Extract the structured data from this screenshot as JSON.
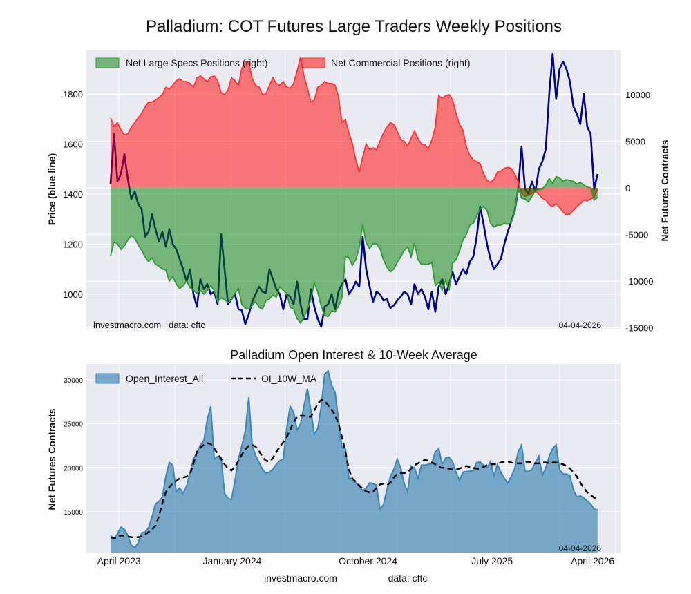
{
  "colors": {
    "plot_bg": "#eaeaf2",
    "grid": "#ffffff",
    "price_line": "#00008b",
    "specs_fill": "#008000",
    "specs_line": "#2f9a2f",
    "comm_fill": "#ff0000",
    "comm_line": "#ff3333",
    "oi_fill": "#2878ac",
    "oi_line": "#3a86b4",
    "ma_line": "#000000"
  },
  "footer": {
    "site": "investmacro.com",
    "data": "data: cftc"
  },
  "chart_data": [
    {
      "type": "area",
      "title": "Palladium: COT Futures Large Traders Weekly Positions",
      "ylabel_left": "Price (blue line)",
      "ylabel_right": "Net Futures Contracts",
      "watermark": "investmacro.com   data: cftc",
      "date_label": "04-04-2026",
      "xlim_weeks": [
        -7.8,
        164.4
      ],
      "ylim_left": [
        859,
        1977
      ],
      "ylim_right": [
        -15185,
        14815
      ],
      "left_ticks": [
        1000,
        1200,
        1400,
        1600,
        1800
      ],
      "right_ticks": [
        -15000,
        -10000,
        -5000,
        0,
        5000,
        10000
      ],
      "x_gridlines_weeks": [
        2.7,
        20.7,
        38.8,
        56.3,
        74.2,
        92.2,
        109.6,
        127.4,
        144.8,
        162.8
      ],
      "grid": true,
      "legend_placement": "top-left",
      "week_start": 0,
      "week_step": 1.1135,
      "series": [
        {
          "name": "Price",
          "axis": "left",
          "kind": "line",
          "values": [
            1440,
            1640,
            1450,
            1480,
            1560,
            1460,
            1380,
            1410,
            1360,
            1340,
            1230,
            1250,
            1320,
            1260,
            1210,
            1250,
            1190,
            1260,
            1200,
            1180,
            1140,
            1100,
            1050,
            1100,
            1000,
            950,
            1060,
            1020,
            1040,
            1000,
            1010,
            960,
            1240,
            1100,
            960,
            980,
            1000,
            940,
            935,
            880,
            920,
            970,
            1000,
            1030,
            1010,
            1005,
            1100,
            1060,
            1020,
            1000,
            940,
            1000,
            990,
            960,
            1050,
            960,
            900,
            900,
            1020,
            950,
            900,
            870,
            950,
            960,
            1000,
            940,
            1010,
            1040,
            1060,
            1000,
            1020,
            1050,
            1030,
            1230,
            1100,
            1030,
            970,
            1010,
            1000,
            975,
            980,
            945,
            955,
            975,
            990,
            1010,
            1000,
            960,
            1040,
            1000,
            1020,
            990,
            940,
            1010,
            930,
            1030,
            1060,
            1000,
            1040,
            1090,
            1040,
            1070,
            1100,
            1080,
            1130,
            1150,
            1230,
            1350,
            1280,
            1200,
            1140,
            1100,
            1120,
            1140,
            1200,
            1250,
            1290,
            1330,
            1420,
            1590,
            1420,
            1400,
            1450,
            1410,
            1500,
            1530,
            1580,
            1800,
            1960,
            1780,
            1900,
            1930,
            1900,
            1850,
            1750,
            1720,
            1680,
            1800,
            1670,
            1640,
            1420,
            1480
          ]
        },
        {
          "name": "Net Commercial Positions (right)",
          "axis": "right",
          "kind": "fill",
          "values": [
            7500,
            6600,
            7000,
            6200,
            5700,
            5800,
            6500,
            7000,
            7500,
            8000,
            8700,
            9200,
            9200,
            9400,
            9700,
            10000,
            10800,
            10600,
            11000,
            11500,
            11700,
            11400,
            11400,
            11200,
            10800,
            11800,
            12000,
            11700,
            11400,
            11900,
            12000,
            11500,
            10200,
            10000,
            10500,
            11800,
            11500,
            11000,
            12800,
            13500,
            13400,
            11700,
            11000,
            10800,
            10000,
            10100,
            11000,
            11800,
            11200,
            11000,
            11400,
            10800,
            10700,
            11200,
            12500,
            14000,
            12000,
            10700,
            9200,
            9400,
            10800,
            11000,
            11400,
            11200,
            11200,
            11000,
            9800,
            7000,
            7300,
            5900,
            4800,
            3000,
            1700,
            3300,
            4700,
            4100,
            4300,
            4100,
            5000,
            5900,
            6500,
            7000,
            6800,
            6100,
            5200,
            5000,
            4500,
            5300,
            6100,
            5300,
            4700,
            4600,
            4200,
            5100,
            6500,
            9900,
            9600,
            9900,
            10000,
            9500,
            8000,
            6800,
            6200,
            4400,
            3500,
            3000,
            2800,
            2600,
            1500,
            800,
            600,
            900,
            1700,
            1800,
            2100,
            2200,
            2100,
            1500,
            700,
            -600,
            -900,
            -800,
            -600,
            -400,
            -700,
            -1100,
            -1300,
            -1800,
            -2000,
            -1700,
            -2100,
            -2600,
            -2900,
            -2800,
            -2400,
            -2000,
            -1700,
            -1300,
            -1400,
            -1200,
            -1000,
            -200
          ]
        },
        {
          "name": "Net Large Specs Positions (right)",
          "axis": "right",
          "kind": "fill",
          "values": [
            -7300,
            -5800,
            -6000,
            -6600,
            -6200,
            -5600,
            -5100,
            -5400,
            -6100,
            -6700,
            -7400,
            -7900,
            -7500,
            -8200,
            -8400,
            -8700,
            -8800,
            -10000,
            -9500,
            -10300,
            -10800,
            -10500,
            -10000,
            -10700,
            -11000,
            -11300,
            -11000,
            -11400,
            -11000,
            -10500,
            -11000,
            -12200,
            -11800,
            -12000,
            -12300,
            -12000,
            -11300,
            -10800,
            -12500,
            -12900,
            -13000,
            -12600,
            -12200,
            -12800,
            -13000,
            -12100,
            -11900,
            -11500,
            -11700,
            -10600,
            -11000,
            -11300,
            -12800,
            -13000,
            -14000,
            -14500,
            -13900,
            -13000,
            -12000,
            -10200,
            -11200,
            -12700,
            -13700,
            -13800,
            -13200,
            -13300,
            -12700,
            -11800,
            -7300,
            -7500,
            -8300,
            -7700,
            -6400,
            -3900,
            -5900,
            -6500,
            -6000,
            -6000,
            -6500,
            -7700,
            -8500,
            -9000,
            -8700,
            -8000,
            -7400,
            -6700,
            -6300,
            -7400,
            -5900,
            -7700,
            -8200,
            -8200,
            -8200,
            -8000,
            -10500,
            -10100,
            -11000,
            -9900,
            -11000,
            -8100,
            -7700,
            -6800,
            -5600,
            -5000,
            -4000,
            -3800,
            -3000,
            -2300,
            -2000,
            -2400,
            -3800,
            -4200,
            -4000,
            -4000,
            -3800,
            -3900,
            -3700,
            -2600,
            0,
            -1100,
            -1200,
            -1500,
            -900,
            -300,
            -200,
            -100,
            300,
            1000,
            500,
            1200,
            1100,
            700,
            900,
            800,
            700,
            400,
            600,
            300,
            100,
            0,
            -1300,
            -1000
          ]
        }
      ]
    },
    {
      "type": "area",
      "title": "Palladium Open Interest & 10-Week Average",
      "ylabel": "Net Futures Contracts",
      "date_label": "04-04-2026",
      "xlim_weeks": [
        -7.8,
        164.4
      ],
      "ylim": [
        10360,
        31800
      ],
      "y_ticks": [
        15000,
        20000,
        25000,
        30000
      ],
      "x_tick_labels": [
        {
          "week": 2.7,
          "label": "April 2023"
        },
        {
          "week": 39.2,
          "label": "January 2024"
        },
        {
          "week": 83.0,
          "label": "October 2024"
        },
        {
          "week": 123.0,
          "label": "July 2025"
        },
        {
          "week": 155.4,
          "label": "April 2026"
        }
      ],
      "x_gridlines_weeks": [
        2.7,
        20.7,
        38.8,
        56.3,
        74.2,
        92.2,
        109.6,
        127.4,
        144.8,
        162.8
      ],
      "grid": true,
      "legend_placement": "top-left",
      "week_start": 0,
      "week_step": 1.1135,
      "series": [
        {
          "name": "Open_Interest_All",
          "kind": "fill",
          "values": [
            12300,
            11950,
            12500,
            13260,
            13000,
            12300,
            11200,
            10900,
            11500,
            12600,
            12700,
            13200,
            14400,
            15900,
            16160,
            16700,
            19000,
            20600,
            20300,
            17300,
            17700,
            17100,
            17900,
            19400,
            21000,
            21700,
            22600,
            23100,
            25500,
            27000,
            21000,
            21300,
            21200,
            17100,
            16500,
            16400,
            18500,
            21000,
            22500,
            24200,
            28000,
            22500,
            21400,
            20600,
            19850,
            19400,
            19500,
            19850,
            20400,
            20800,
            21000,
            24500,
            27000,
            26300,
            24300,
            25000,
            27000,
            29000,
            26500,
            23800,
            24500,
            27000,
            30660,
            31000,
            29400,
            28600,
            25500,
            22300,
            22200,
            18800,
            18790,
            18300,
            17900,
            17400,
            17700,
            18300,
            18200,
            18000,
            15300,
            15800,
            17500,
            19000,
            19800,
            21000,
            20000,
            18200,
            17300,
            20200,
            20000,
            18790,
            20300,
            20300,
            20380,
            20450,
            21800,
            22200,
            20400,
            21100,
            21200,
            20700,
            19500,
            18600,
            19500,
            19580,
            19600,
            19700,
            20600,
            20640,
            20300,
            20000,
            20700,
            19060,
            20400,
            19500,
            18800,
            18270,
            19000,
            19900,
            21800,
            22600,
            19600,
            19580,
            19800,
            20600,
            21300,
            19200,
            20000,
            21300,
            22200,
            22600,
            19800,
            19300,
            19300,
            19100,
            17500,
            16700,
            16800,
            16600,
            16200,
            15900,
            15300,
            15200
          ]
        },
        {
          "name": "OI_10W_MA",
          "kind": "dashed-line",
          "values": [
            12100,
            12000,
            12100,
            12300,
            12300,
            12200,
            12100,
            12100,
            12100,
            12200,
            12400,
            12700,
            13000,
            13400,
            14500,
            16000,
            17200,
            17800,
            18200,
            18500,
            18800,
            18900,
            19000,
            19300,
            20500,
            21800,
            22300,
            22600,
            22800,
            22700,
            22200,
            21600,
            21000,
            20400,
            19900,
            19700,
            20100,
            20800,
            21500,
            22100,
            22500,
            22600,
            22400,
            21900,
            21200,
            20800,
            20700,
            21100,
            21800,
            22400,
            22900,
            23500,
            24300,
            25200,
            25800,
            25900,
            25900,
            25800,
            25800,
            26500,
            27300,
            27700,
            27600,
            27100,
            26600,
            26000,
            25000,
            23500,
            21800,
            19800,
            18800,
            18400,
            18000,
            17600,
            17300,
            17200,
            17300,
            17700,
            18100,
            18200,
            18000,
            18300,
            18900,
            19300,
            19400,
            19400,
            19500,
            19900,
            20300,
            20500,
            20700,
            20900,
            20800,
            20600,
            20400,
            20100,
            20000,
            20000,
            19900,
            19800,
            19800,
            19900,
            20100,
            20200,
            20100,
            20000,
            19900,
            19900,
            20100,
            20300,
            20400,
            20400,
            20500,
            20600,
            20700,
            20700,
            20600,
            20500,
            20500,
            20500,
            20600,
            20700,
            20600,
            20500,
            20500,
            20600,
            20600,
            20500,
            20600,
            20600,
            20500,
            20400,
            20200,
            19900,
            19500,
            19000,
            18300,
            17700,
            17200,
            16900,
            16600,
            16400
          ]
        }
      ]
    }
  ]
}
